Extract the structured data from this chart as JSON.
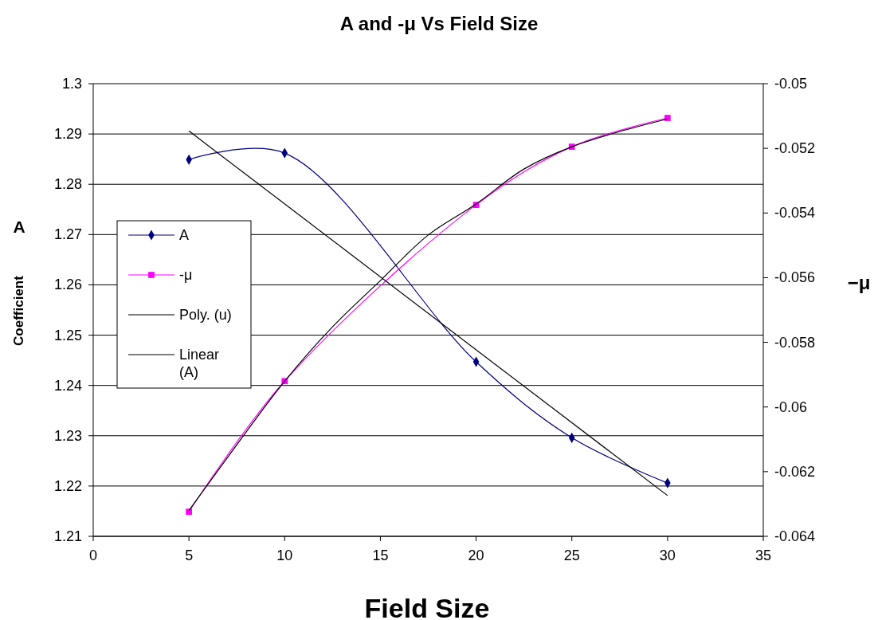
{
  "chart_data": {
    "type": "line",
    "title": "A and -μ Vs Field Size",
    "xlabel": "Field Size",
    "ylabel": "Coefficient",
    "y2label": "−μ",
    "annotations": [
      "A"
    ],
    "xlim": [
      0,
      35
    ],
    "xticks": [
      0,
      5,
      10,
      15,
      20,
      25,
      30,
      35
    ],
    "ylim": [
      1.21,
      1.3
    ],
    "yticks": [
      1.21,
      1.22,
      1.23,
      1.24,
      1.25,
      1.26,
      1.27,
      1.28,
      1.29,
      1.3
    ],
    "y2lim": [
      -0.064,
      -0.05
    ],
    "y2ticks": [
      -0.064,
      -0.062,
      -0.06,
      -0.058,
      -0.056,
      -0.054,
      -0.052,
      -0.05
    ],
    "grid": "y",
    "legend": "left",
    "series": [
      {
        "name": "A",
        "color": "#000080",
        "marker": "diamond",
        "x": [
          5,
          10,
          20,
          25,
          30
        ],
        "values": [
          1.2849,
          1.2862,
          1.2447,
          1.2296,
          1.2206
        ]
      },
      {
        "name": "-μ",
        "color": "#ff00ff",
        "marker": "square",
        "axis": "y2",
        "x": [
          5,
          10,
          20,
          25,
          30
        ],
        "values": [
          -0.06324,
          -0.0592,
          -0.05375,
          -0.05195,
          -0.05106
        ]
      },
      {
        "name": "Poly. (u)",
        "color": "#000000",
        "marker": "none",
        "axis": "y2",
        "x": [
          5,
          7.5,
          10,
          12.5,
          15,
          17.5,
          20,
          22.5,
          25,
          27.5,
          30
        ],
        "values": [
          -0.0632,
          -0.06117,
          -0.0592,
          -0.05752,
          -0.05609,
          -0.05468,
          -0.05372,
          -0.05264,
          -0.05195,
          -0.05148,
          -0.05109
        ]
      },
      {
        "name": "Linear (A)",
        "color": "#000000",
        "marker": "none",
        "x": [
          5,
          30
        ],
        "values": [
          1.2906,
          1.2181
        ]
      }
    ]
  }
}
